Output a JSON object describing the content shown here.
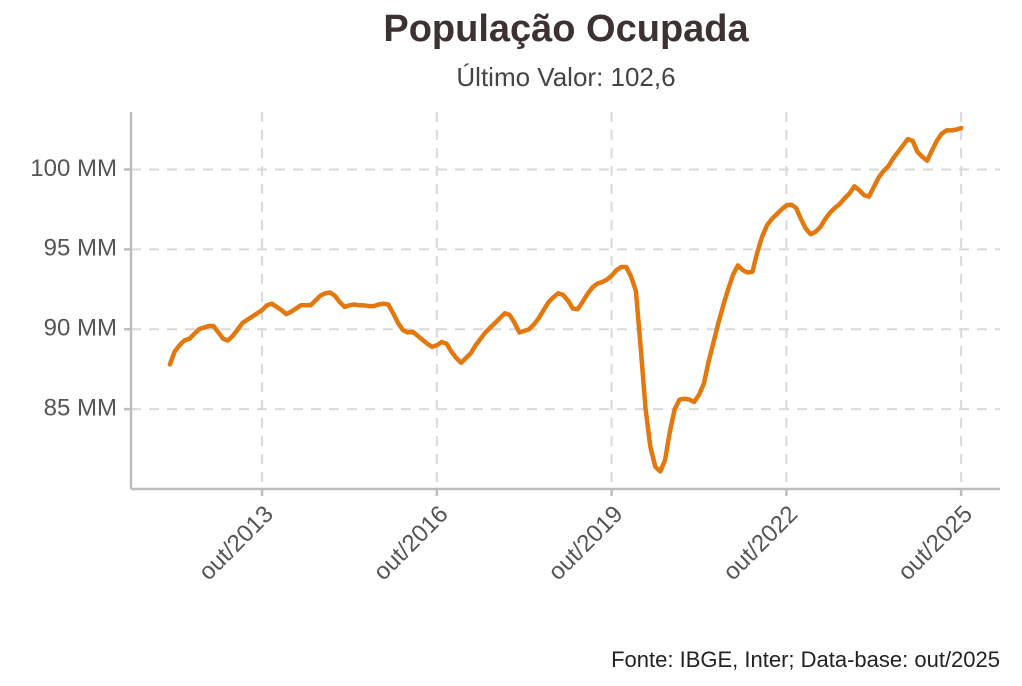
{
  "chart_data": {
    "type": "line",
    "title": "População Ocupada",
    "subtitle": "Último Valor: 102,6",
    "caption": "Fonte: IBGE, Inter; Data-base: out/2025",
    "color": "#e2780e",
    "grid": true,
    "x": [
      "mar/2012",
      "abr/2012",
      "mai/2012",
      "jun/2012",
      "jul/2012",
      "ago/2012",
      "set/2012",
      "out/2012",
      "nov/2012",
      "dez/2012",
      "jan/2013",
      "fev/2013",
      "mar/2013",
      "abr/2013",
      "mai/2013",
      "jun/2013",
      "jul/2013",
      "ago/2013",
      "set/2013",
      "out/2013",
      "nov/2013",
      "dez/2013",
      "jan/2014",
      "fev/2014",
      "mar/2014",
      "abr/2014",
      "mai/2014",
      "jun/2014",
      "jul/2014",
      "ago/2014",
      "set/2014",
      "out/2014",
      "nov/2014",
      "dez/2014",
      "jan/2015",
      "fev/2015",
      "mar/2015",
      "abr/2015",
      "mai/2015",
      "jun/2015",
      "jul/2015",
      "ago/2015",
      "set/2015",
      "out/2015",
      "nov/2015",
      "dez/2015",
      "jan/2016",
      "fev/2016",
      "mar/2016",
      "abr/2016",
      "mai/2016",
      "jun/2016",
      "jul/2016",
      "ago/2016",
      "set/2016",
      "out/2016",
      "nov/2016",
      "dez/2016",
      "jan/2017",
      "fev/2017",
      "mar/2017",
      "abr/2017",
      "mai/2017",
      "jun/2017",
      "jul/2017",
      "ago/2017",
      "set/2017",
      "out/2017",
      "nov/2017",
      "dez/2017",
      "jan/2018",
      "fev/2018",
      "mar/2018",
      "abr/2018",
      "mai/2018",
      "jun/2018",
      "jul/2018",
      "ago/2018",
      "set/2018",
      "out/2018",
      "nov/2018",
      "dez/2018",
      "jan/2019",
      "fev/2019",
      "mar/2019",
      "abr/2019",
      "mai/2019",
      "jun/2019",
      "jul/2019",
      "ago/2019",
      "set/2019",
      "out/2019",
      "nov/2019",
      "dez/2019",
      "jan/2020",
      "fev/2020",
      "mar/2020",
      "abr/2020",
      "mai/2020",
      "jun/2020",
      "jul/2020",
      "ago/2020",
      "set/2020",
      "out/2020",
      "nov/2020",
      "dez/2020",
      "jan/2021",
      "fev/2021",
      "mar/2021",
      "abr/2021",
      "mai/2021",
      "jun/2021",
      "jul/2021",
      "ago/2021",
      "set/2021",
      "out/2021",
      "nov/2021",
      "dez/2021",
      "jan/2022",
      "fev/2022",
      "mar/2022",
      "abr/2022",
      "mai/2022",
      "jun/2022",
      "jul/2022",
      "ago/2022",
      "set/2022",
      "out/2022",
      "nov/2022",
      "dez/2022",
      "jan/2023",
      "fev/2023",
      "mar/2023",
      "abr/2023",
      "mai/2023",
      "jun/2023",
      "jul/2023",
      "ago/2023",
      "set/2023",
      "out/2023",
      "nov/2023",
      "dez/2023",
      "jan/2024",
      "fev/2024",
      "mar/2024",
      "abr/2024",
      "mai/2024",
      "jun/2024",
      "jul/2024",
      "ago/2024",
      "set/2024",
      "out/2024",
      "nov/2024",
      "dez/2024",
      "jan/2025",
      "fev/2025",
      "mar/2025",
      "abr/2025",
      "mai/2025",
      "jun/2025",
      "jul/2025",
      "ago/2025",
      "set/2025",
      "out/2025"
    ],
    "values": [
      87.8,
      88.6,
      89.0,
      89.3,
      89.4,
      89.7,
      90.0,
      90.1,
      90.2,
      90.2,
      89.8,
      89.4,
      89.3,
      89.6,
      90.0,
      90.4,
      90.6,
      90.8,
      91.0,
      91.2,
      91.5,
      91.6,
      91.4,
      91.2,
      90.95,
      91.1,
      91.3,
      91.5,
      91.5,
      91.5,
      91.8,
      92.1,
      92.25,
      92.3,
      92.1,
      91.7,
      91.4,
      91.5,
      91.55,
      91.5,
      91.5,
      91.45,
      91.45,
      91.55,
      91.6,
      91.55,
      91.0,
      90.4,
      89.95,
      89.8,
      89.85,
      89.6,
      89.35,
      89.1,
      88.9,
      89.0,
      89.2,
      89.1,
      88.6,
      88.2,
      87.9,
      88.2,
      88.5,
      89.0,
      89.4,
      89.8,
      90.1,
      90.4,
      90.7,
      91.0,
      90.9,
      90.4,
      89.8,
      89.9,
      90.0,
      90.3,
      90.7,
      91.2,
      91.7,
      92.0,
      92.25,
      92.15,
      91.8,
      91.3,
      91.25,
      91.7,
      92.2,
      92.6,
      92.85,
      92.95,
      93.1,
      93.35,
      93.7,
      93.9,
      93.9,
      93.3,
      92.4,
      88.8,
      85.0,
      82.6,
      81.4,
      81.1,
      81.8,
      83.6,
      85.0,
      85.6,
      85.65,
      85.6,
      85.45,
      85.9,
      86.6,
      88.0,
      89.2,
      90.4,
      91.5,
      92.5,
      93.4,
      94.0,
      93.7,
      93.55,
      93.6,
      94.8,
      95.8,
      96.5,
      96.9,
      97.2,
      97.5,
      97.75,
      97.8,
      97.6,
      96.9,
      96.3,
      95.95,
      96.1,
      96.4,
      96.9,
      97.3,
      97.6,
      97.85,
      98.2,
      98.5,
      98.95,
      98.7,
      98.4,
      98.3,
      98.9,
      99.5,
      99.9,
      100.2,
      100.7,
      101.1,
      101.5,
      101.9,
      101.8,
      101.1,
      100.8,
      100.55,
      101.2,
      101.8,
      102.25,
      102.45,
      102.45,
      102.5,
      102.6
    ],
    "xticks": [
      "out/2013",
      "out/2016",
      "out/2019",
      "out/2022",
      "out/2025"
    ],
    "ylim": [
      80,
      103.6
    ],
    "yticks": [
      {
        "value": 85,
        "label": "85 MM"
      },
      {
        "value": 90,
        "label": "90 MM"
      },
      {
        "value": 95,
        "label": "95 MM"
      },
      {
        "value": 100,
        "label": "100 MM"
      }
    ]
  }
}
